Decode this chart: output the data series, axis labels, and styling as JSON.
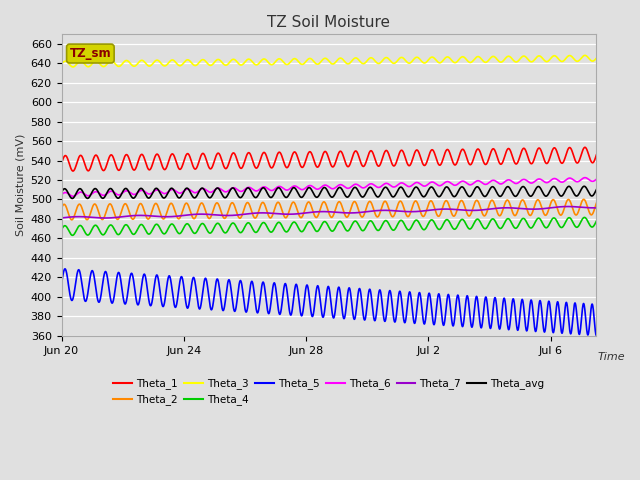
{
  "title": "TZ Soil Moisture",
  "xlabel": "Time",
  "ylabel": "Soil Moisture (mV)",
  "ylim": [
    360,
    670
  ],
  "yticks": [
    360,
    380,
    400,
    420,
    440,
    460,
    480,
    500,
    520,
    540,
    560,
    580,
    600,
    620,
    640,
    660
  ],
  "background_color": "#e0e0e0",
  "plot_bg_color": "#e0e0e0",
  "legend_box_text": "TZ_sm",
  "series": [
    {
      "name": "Theta_1",
      "color": "#ff0000",
      "base": 537,
      "amplitude": 8,
      "trend": 0.5,
      "freq_per_day": 2.0,
      "phase": 0.0,
      "freq_trend": 0.0
    },
    {
      "name": "Theta_2",
      "color": "#ff8800",
      "base": 487,
      "amplitude": 8,
      "trend": 0.3,
      "freq_per_day": 2.0,
      "phase": 0.5,
      "freq_trend": 0.0
    },
    {
      "name": "Theta_3",
      "color": "#ffff00",
      "base": 639,
      "amplitude": 3,
      "trend": 0.35,
      "freq_per_day": 2.0,
      "phase": 0.0,
      "freq_trend": 0.0
    },
    {
      "name": "Theta_4",
      "color": "#00cc00",
      "base": 468,
      "amplitude": 5,
      "trend": 0.5,
      "freq_per_day": 2.0,
      "phase": 0.2,
      "freq_trend": 0.0
    },
    {
      "name": "Theta_5",
      "color": "#0000ff",
      "base": 413,
      "amplitude": 16,
      "trend": -2.1,
      "freq_per_day": 2.2,
      "phase": 0.0,
      "freq_trend": 0.08
    },
    {
      "name": "Theta_6",
      "color": "#ff00ff",
      "base": 505,
      "amplitude": 2,
      "trend": 0.9,
      "freq_per_day": 2.0,
      "phase": 0.0,
      "freq_trend": 0.0
    },
    {
      "name": "Theta_7",
      "color": "#9900cc",
      "base": 481,
      "amplitude": 1,
      "trend": 0.65,
      "freq_per_day": 0.5,
      "phase": 0.0,
      "freq_trend": 0.0
    },
    {
      "name": "Theta_avg",
      "color": "#000000",
      "base": 506,
      "amplitude": 5,
      "trend": 0.15,
      "freq_per_day": 2.0,
      "phase": 0.3,
      "freq_trend": 0.0
    }
  ],
  "xtick_labels": [
    "Jun 20",
    "Jun 24",
    "Jun 28",
    "Jul 2",
    "Jul 6"
  ],
  "xtick_days": [
    0,
    4,
    8,
    12,
    16
  ]
}
